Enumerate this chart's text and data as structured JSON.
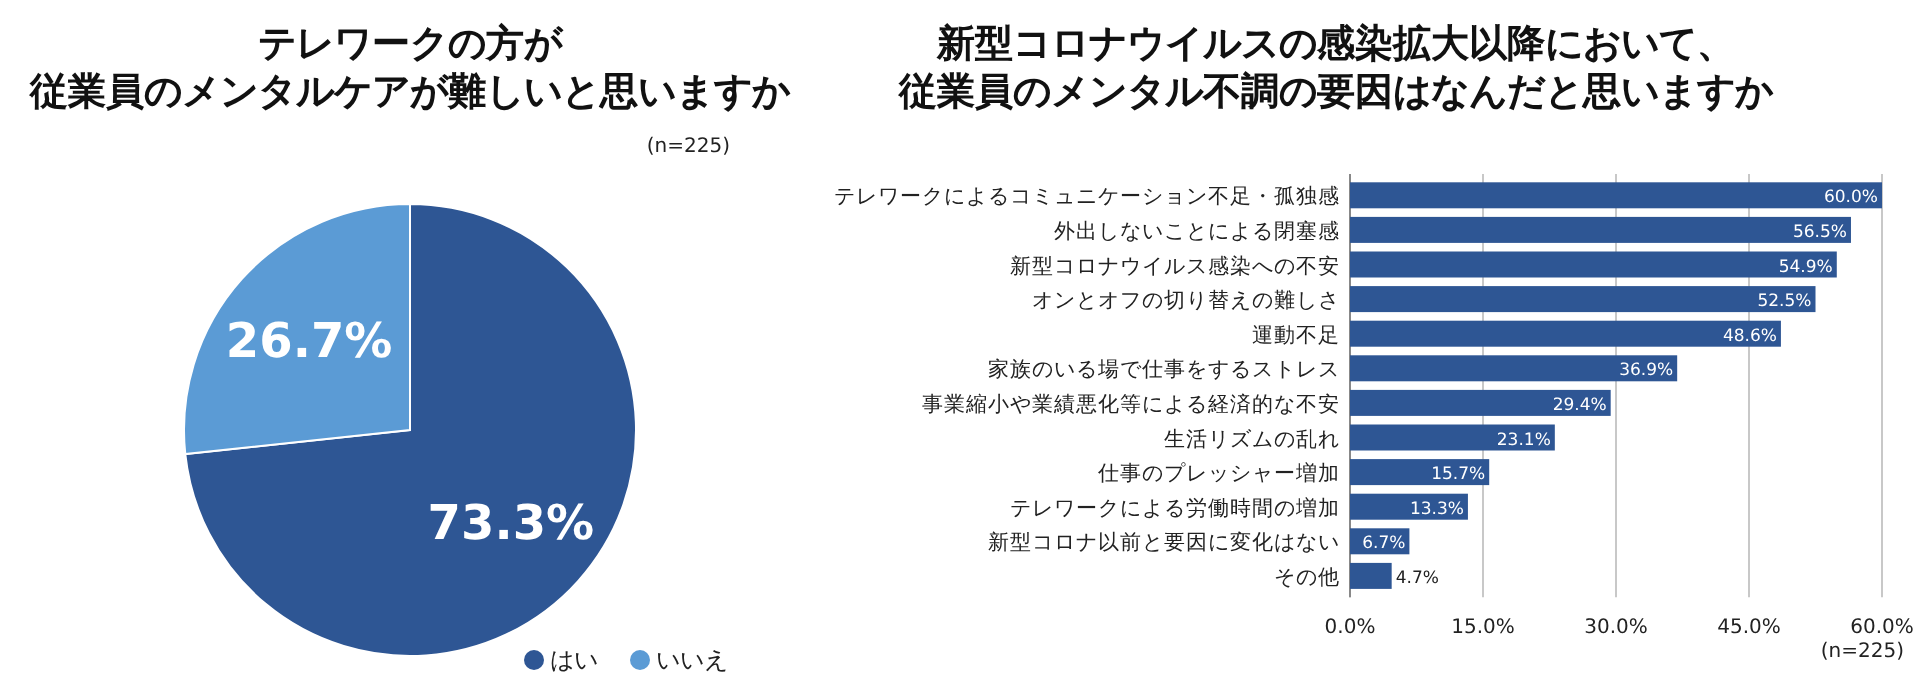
{
  "chart_data": [
    {
      "type": "pie",
      "title": "テレワークの方が",
      "subtitle": "従業員のメンタルケアが難しいと思いますか",
      "annotations": [
        "(n=225)"
      ],
      "categories": [
        "はい",
        "いいえ"
      ],
      "values": [
        73.3,
        26.7
      ],
      "value_labels": [
        "73.3%",
        "26.7%"
      ],
      "colors": [
        "#2e5694",
        "#5b9bd5"
      ],
      "legend": "bottom right"
    },
    {
      "type": "bar",
      "orientation": "horizontal",
      "title": "新型コロナウイルスの感染拡大以降において、",
      "subtitle": "従業員のメンタル不調の要因はなんだと思いますか",
      "annotations": [
        "(n=225)"
      ],
      "categories": [
        "テレワークによるコミュニケーション不足・孤独感",
        "外出しないことによる閉塞感",
        "新型コロナウイルス感染への不安",
        "オンとオフの切り替えの難しさ",
        "運動不足",
        "家族のいる場で仕事をするストレス",
        "事業縮小や業績悪化等による経済的な不安",
        "生活リズムの乱れ",
        "仕事のプレッシャー増加",
        "テレワークによる労働時間の増加",
        "新型コロナ以前と要因に変化はない",
        "その他"
      ],
      "values": [
        60.0,
        56.5,
        54.9,
        52.5,
        48.6,
        36.9,
        29.4,
        23.1,
        15.7,
        13.3,
        6.7,
        4.7
      ],
      "value_labels": [
        "60.0%",
        "56.5%",
        "54.9%",
        "52.5%",
        "48.6%",
        "36.9%",
        "29.4%",
        "23.1%",
        "15.7%",
        "13.3%",
        "6.7%",
        "4.7%"
      ],
      "color": "#2e5694",
      "xlim": [
        0,
        60
      ],
      "xticks": [
        {
          "value": 0,
          "label": "0.0%"
        },
        {
          "value": 15,
          "label": "15.0%"
        },
        {
          "value": 30,
          "label": "30.0%"
        },
        {
          "value": 45,
          "label": "45.0%"
        },
        {
          "value": 60,
          "label": "60.0%"
        }
      ],
      "grid": "x"
    }
  ]
}
